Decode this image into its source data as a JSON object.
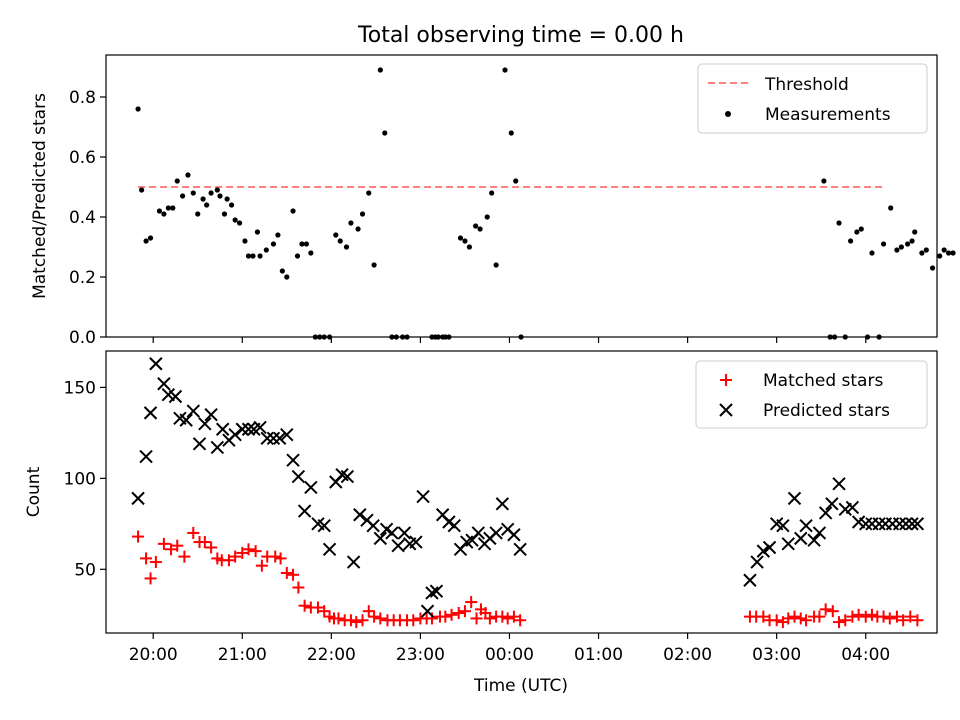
{
  "figure": {
    "title": "Total observing time = 0.00 h"
  },
  "chart_data": [
    {
      "type": "scatter",
      "ylabel": "Matched/Predicted stars",
      "xlabel": "",
      "xlim": [
        19.47,
        28.8
      ],
      "ylim": [
        0,
        0.94
      ],
      "yticks": [
        0.0,
        0.2,
        0.4,
        0.6,
        0.8
      ],
      "ytick_labels": [
        "0.0",
        "0.2",
        "0.4",
        "0.6",
        "0.8"
      ],
      "xticks": [
        20,
        21,
        22,
        23,
        24,
        25,
        26,
        27,
        28
      ],
      "grid": false,
      "legend": {
        "position": "top-right",
        "entries": [
          "Threshold",
          "Measurements"
        ]
      },
      "threshold": {
        "name": "Threshold",
        "x": [
          19.83,
          28.2
        ],
        "y": 0.5,
        "color": "#ff7f7f"
      },
      "series": [
        {
          "name": "Measurements",
          "color": "#000000",
          "x": [
            19.83,
            19.87,
            19.92,
            19.97,
            20.07,
            20.12,
            20.17,
            20.22,
            20.27,
            20.33,
            20.39,
            20.45,
            20.5,
            20.56,
            20.6,
            20.65,
            20.72,
            20.75,
            20.8,
            20.83,
            20.88,
            20.92,
            20.97,
            21.03,
            21.07,
            21.12,
            21.17,
            21.2,
            21.27,
            21.35,
            21.4,
            21.45,
            21.5,
            21.57,
            21.62,
            21.67,
            21.72,
            21.77,
            21.82,
            21.87,
            21.92,
            21.98,
            22.05,
            22.1,
            22.17,
            22.22,
            22.3,
            22.35,
            22.42,
            22.48,
            22.55,
            22.6,
            22.68,
            22.73,
            22.8,
            22.85,
            23.13,
            23.17,
            23.2,
            23.25,
            23.28,
            23.32,
            23.45,
            23.5,
            23.55,
            23.62,
            23.67,
            23.75,
            23.8,
            23.85,
            23.95,
            24.02,
            24.07,
            24.13,
            27.53,
            27.6,
            27.65,
            27.7,
            27.77,
            27.83,
            27.9,
            27.95,
            28.02,
            28.07,
            28.15,
            28.2,
            28.28,
            28.35,
            28.4,
            28.47,
            28.52,
            28.55,
            28.63,
            28.68,
            28.75,
            28.83,
            28.88,
            28.93,
            28.98
          ],
          "y": [
            0.76,
            0.49,
            0.32,
            0.33,
            0.42,
            0.41,
            0.43,
            0.43,
            0.52,
            0.47,
            0.54,
            0.48,
            0.41,
            0.46,
            0.44,
            0.48,
            0.49,
            0.47,
            0.41,
            0.46,
            0.44,
            0.39,
            0.38,
            0.32,
            0.27,
            0.27,
            0.35,
            0.27,
            0.29,
            0.31,
            0.34,
            0.22,
            0.2,
            0.42,
            0.27,
            0.31,
            0.31,
            0.28,
            0.0,
            0.0,
            0.0,
            0.0,
            0.34,
            0.32,
            0.3,
            0.38,
            0.36,
            0.41,
            0.48,
            0.24,
            0.89,
            0.68,
            0.0,
            0.0,
            0.0,
            0.0,
            0.0,
            0.0,
            0.0,
            0.0,
            0.0,
            0.0,
            0.33,
            0.32,
            0.3,
            0.37,
            0.36,
            0.4,
            0.48,
            0.24,
            0.89,
            0.68,
            0.52,
            0.0,
            0.52,
            0.0,
            0.0,
            0.38,
            0.0,
            0.32,
            0.35,
            0.36,
            0.0,
            0.28,
            0.0,
            0.31,
            0.43,
            0.29,
            0.3,
            0.31,
            0.32,
            0.35,
            0.28,
            0.29,
            0.23,
            0.27,
            0.29,
            0.28,
            0.28
          ]
        }
      ]
    },
    {
      "type": "scatter",
      "ylabel": "Count",
      "xlabel": "Time (UTC)",
      "xlim": [
        19.47,
        28.8
      ],
      "ylim": [
        15,
        170
      ],
      "yticks": [
        50,
        100,
        150
      ],
      "ytick_labels": [
        "50",
        "100",
        "150"
      ],
      "xticks": [
        20,
        21,
        22,
        23,
        24,
        25,
        26,
        27,
        28
      ],
      "xtick_labels": [
        "20:00",
        "21:00",
        "22:00",
        "23:00",
        "00:00",
        "01:00",
        "02:00",
        "03:00",
        "04:00"
      ],
      "grid": false,
      "legend": {
        "position": "top-right",
        "entries": [
          "Matched stars",
          "Predicted stars"
        ]
      },
      "series": [
        {
          "name": "Matched stars",
          "color": "#ff0000",
          "marker": "+",
          "x": [
            19.83,
            19.92,
            19.97,
            20.03,
            20.12,
            20.2,
            20.27,
            20.35,
            20.45,
            20.52,
            20.58,
            20.65,
            20.72,
            20.77,
            20.85,
            20.92,
            21.0,
            21.07,
            21.15,
            21.22,
            21.28,
            21.37,
            21.43,
            21.5,
            21.57,
            21.63,
            21.7,
            21.77,
            21.85,
            21.92,
            21.98,
            22.03,
            22.08,
            22.15,
            22.22,
            22.28,
            22.35,
            22.42,
            22.48,
            22.55,
            22.63,
            22.7,
            22.77,
            22.85,
            22.92,
            23.0,
            23.07,
            23.13,
            23.22,
            23.28,
            23.35,
            23.43,
            23.5,
            23.57,
            23.63,
            23.68,
            23.73,
            23.78,
            23.85,
            23.92,
            23.98,
            24.05,
            24.12,
            26.7,
            26.77,
            26.85,
            26.92,
            27.0,
            27.07,
            27.13,
            27.2,
            27.27,
            27.33,
            27.42,
            27.48,
            27.55,
            27.63,
            27.7,
            27.77,
            27.85,
            27.92,
            28.0,
            28.07,
            28.13,
            28.2,
            28.27,
            28.35,
            28.42,
            28.5,
            28.58
          ],
          "y": [
            68,
            56,
            45,
            54,
            64,
            61,
            63,
            57,
            70,
            65,
            65,
            62,
            56,
            55,
            55,
            57,
            59,
            61,
            60,
            52,
            57,
            57,
            56,
            48,
            47,
            40,
            30,
            29,
            29,
            27,
            24,
            23,
            23,
            22,
            22,
            21,
            22,
            27,
            24,
            23,
            22,
            22,
            22,
            22,
            22,
            23,
            23,
            23,
            24,
            24,
            25,
            26,
            27,
            32,
            23,
            28,
            26,
            23,
            24,
            24,
            23,
            24,
            22,
            24,
            24,
            24,
            22,
            22,
            21,
            23,
            24,
            23,
            22,
            24,
            24,
            28,
            27,
            21,
            22,
            24,
            25,
            24,
            25,
            24,
            24,
            23,
            24,
            22,
            24,
            22
          ]
        },
        {
          "name": "Predicted stars",
          "color": "#000000",
          "marker": "x",
          "x": [
            19.83,
            19.92,
            19.97,
            20.03,
            20.12,
            20.17,
            20.25,
            20.3,
            20.37,
            20.45,
            20.52,
            20.58,
            20.65,
            20.72,
            20.78,
            20.85,
            20.92,
            21.0,
            21.07,
            21.13,
            21.2,
            21.28,
            21.35,
            21.42,
            21.5,
            21.57,
            21.63,
            21.7,
            21.77,
            21.85,
            21.92,
            21.98,
            22.05,
            22.12,
            22.18,
            22.25,
            22.32,
            22.4,
            22.47,
            22.55,
            22.62,
            22.68,
            22.75,
            22.82,
            22.88,
            22.95,
            23.03,
            23.08,
            23.13,
            23.18,
            23.25,
            23.32,
            23.38,
            23.45,
            23.52,
            23.58,
            23.65,
            23.72,
            23.78,
            23.85,
            23.92,
            23.98,
            24.05,
            24.12,
            26.7,
            26.78,
            26.85,
            26.92,
            27.0,
            27.07,
            27.13,
            27.2,
            27.27,
            27.33,
            27.42,
            27.48,
            27.55,
            27.62,
            27.7,
            27.77,
            27.85,
            27.92,
            28.0,
            28.07,
            28.15,
            28.22,
            28.3,
            28.38,
            28.45,
            28.52,
            28.58
          ],
          "y": [
            89,
            112,
            136,
            163,
            152,
            146,
            145,
            133,
            132,
            137,
            119,
            130,
            135,
            117,
            127,
            121,
            124,
            127,
            127,
            127,
            128,
            122,
            122,
            122,
            124,
            110,
            101,
            82,
            95,
            75,
            74,
            61,
            98,
            102,
            101,
            54,
            80,
            77,
            74,
            67,
            72,
            70,
            63,
            70,
            64,
            65,
            90,
            27,
            37,
            38,
            80,
            76,
            74,
            61,
            65,
            66,
            70,
            64,
            67,
            70,
            86,
            72,
            69,
            61,
            44,
            54,
            60,
            62,
            75,
            74,
            64,
            89,
            67,
            74,
            66,
            70,
            81,
            86,
            97,
            83,
            84,
            76,
            75,
            75,
            75,
            75,
            75,
            75,
            75,
            75,
            75
          ]
        }
      ]
    }
  ]
}
